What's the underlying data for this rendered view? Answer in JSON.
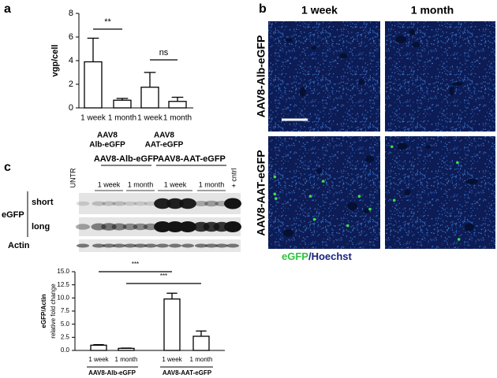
{
  "chart_data": [
    {
      "type": "bar",
      "panel": "a",
      "ylabel": "vgp/cell",
      "categories": [
        "1 week",
        "1 month",
        "1 week",
        "1 month"
      ],
      "values": [
        3.9,
        0.65,
        1.75,
        0.55
      ],
      "errors": [
        2.0,
        0.15,
        1.25,
        0.35
      ],
      "group_labels": [
        [
          "AAV8",
          "Alb-eGFP"
        ],
        [
          "AAV8",
          "AAT-eGFP"
        ]
      ],
      "annotations": [
        "**",
        "ns"
      ],
      "ylim": [
        0,
        8
      ],
      "yticks": [
        0,
        2,
        4,
        6,
        8
      ],
      "color": "#ffffff"
    },
    {
      "type": "bar",
      "ylabel": [
        "eGFP/Actin",
        "relative fold change"
      ],
      "categories": [
        "1 week",
        "1 month",
        "1 week",
        "1 month"
      ],
      "values": [
        1.0,
        0.4,
        9.8,
        2.7
      ],
      "errors": [
        0.1,
        0.05,
        1.1,
        1.0
      ],
      "group_labels": [
        [
          "AAV8-Alb-eGFP"
        ],
        [
          "AAV8-AAT-eGFP"
        ]
      ],
      "annotations": [
        "***",
        "***"
      ],
      "ylim": [
        0,
        15
      ],
      "yticks": [
        {
          "value": 0,
          "label": "0.0"
        },
        {
          "value": 2.5,
          "label": "2.5"
        },
        {
          "value": 5,
          "label": "5.0"
        },
        {
          "value": 7.5,
          "label": "7.5"
        },
        {
          "value": 10,
          "label": "10.0"
        },
        {
          "value": 12.5,
          "label": "12.5"
        },
        {
          "value": 15,
          "label": "15.0"
        }
      ],
      "color": "#ffffff"
    }
  ],
  "panel_b": {
    "panel": "b",
    "columns": [
      "1 week",
      "1 month"
    ],
    "rows": [
      "AAV8-Alb-eGFP",
      "AAV8-AAT-eGFP"
    ],
    "legend": [
      "eGFP",
      "/Hoechst"
    ]
  },
  "panel_c": {
    "panel": "c",
    "groups": [
      "AAV8-Alb-eGFP",
      "AAV8-AAT-eGFP"
    ],
    "untreated": "UNTR",
    "control": "+ cntrl",
    "timepoints": [
      "1 week",
      "1 month",
      "1 week",
      "1 month"
    ],
    "target": "eGFP",
    "exposures": [
      "short",
      "long"
    ],
    "loading": "Actin"
  }
}
